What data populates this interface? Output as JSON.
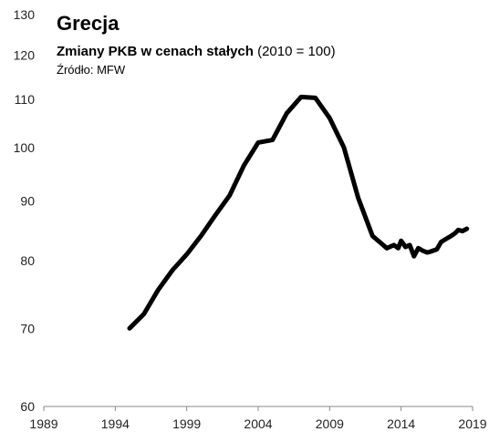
{
  "chart_data": {
    "type": "line",
    "title": "Grecja",
    "subtitle_bold": "Zmiany PKB w cenach stałych",
    "subtitle_rest": " (2010 = 100)",
    "source": "Źródło: MFW",
    "y_scale": "log",
    "ylim": [
      60,
      130
    ],
    "xlim": [
      1989,
      2019
    ],
    "yticks": [
      60,
      70,
      80,
      90,
      100,
      110,
      120,
      130
    ],
    "xticks": [
      1989,
      1994,
      1999,
      2004,
      2009,
      2014,
      2019
    ],
    "grid": false,
    "line_color": "#000000",
    "series": [
      {
        "x": [
          1995,
          1996,
          1997,
          1998,
          1999,
          2000,
          2001,
          2002,
          2003,
          2004,
          2005,
          2006,
          2007,
          2008,
          2009,
          2010,
          2011,
          2012,
          2013,
          2013.5,
          2013.8,
          2014,
          2014.3,
          2014.6,
          2014.9,
          2015.2,
          2015.5,
          2015.8,
          2016,
          2016.5,
          2016.8,
          2017,
          2017.5,
          2017.8,
          2018,
          2018.3,
          2018.6
        ],
        "y": [
          70,
          72,
          75.5,
          78.5,
          81,
          84,
          87.5,
          91,
          96.5,
          101,
          101.5,
          107,
          110.5,
          110.3,
          106,
          100,
          90.5,
          84,
          82,
          82.5,
          82,
          83.2,
          82.2,
          82.5,
          80.7,
          82,
          81.6,
          81.3,
          81.4,
          81.8,
          83,
          83.3,
          84,
          84.5,
          85,
          84.8,
          85.2
        ]
      }
    ]
  }
}
